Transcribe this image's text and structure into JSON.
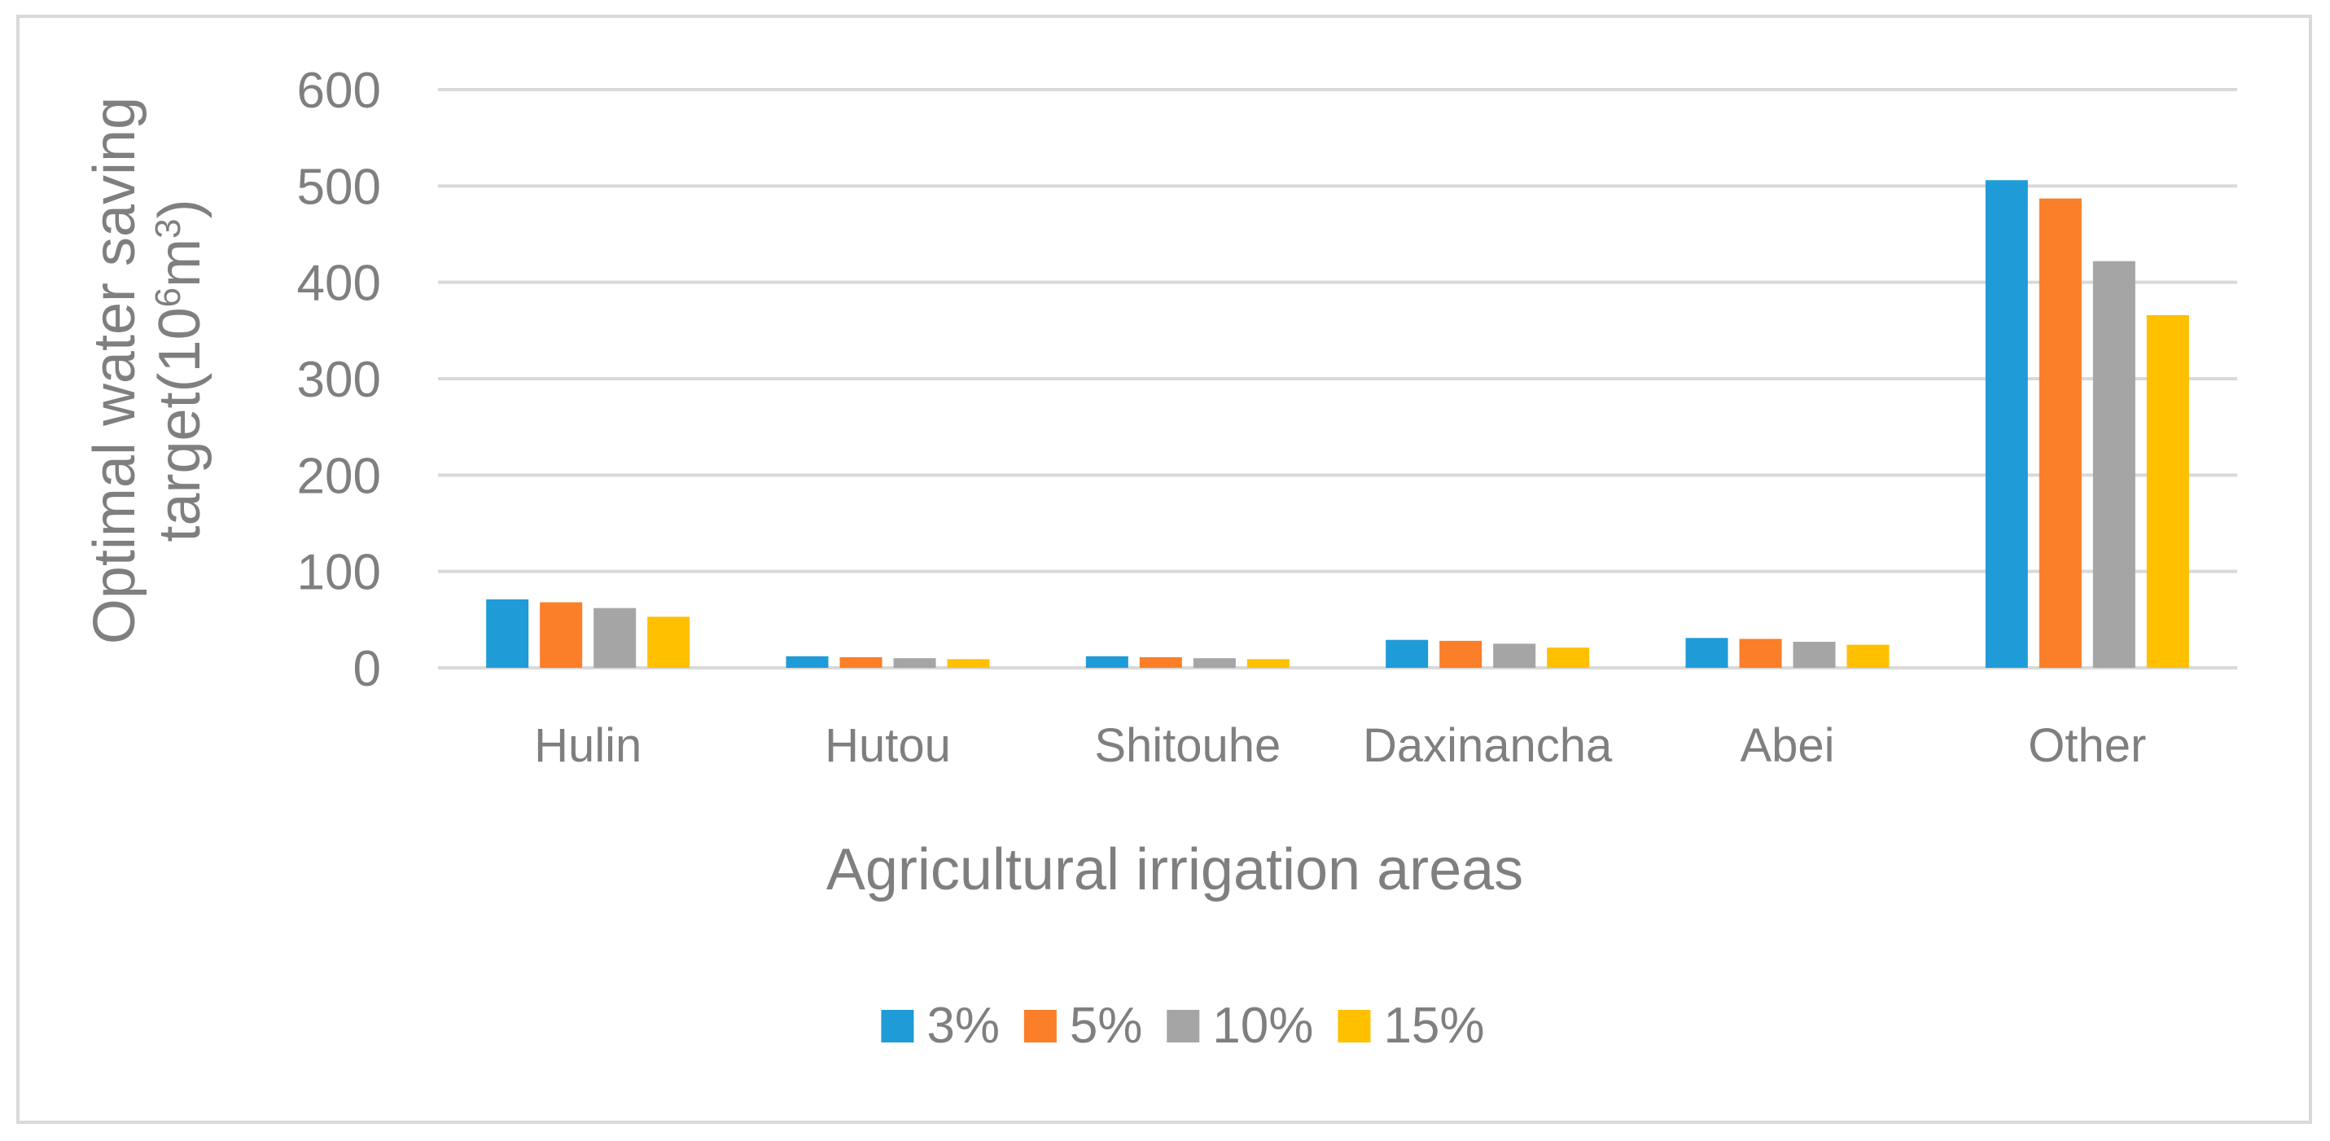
{
  "chart_data": {
    "type": "bar",
    "categories": [
      "Hulin",
      "Hutou",
      "Shitouhe",
      "Daxinancha",
      "Abei",
      "Other"
    ],
    "series": [
      {
        "name": "3%",
        "color": "#1f9bd7",
        "values": [
          71,
          12,
          12,
          29,
          31,
          506
        ]
      },
      {
        "name": "5%",
        "color": "#fb7e28",
        "values": [
          68,
          11,
          11,
          28,
          30,
          487
        ]
      },
      {
        "name": "10%",
        "color": "#a5a5a5",
        "values": [
          62,
          10,
          10,
          25,
          27,
          422
        ]
      },
      {
        "name": "15%",
        "color": "#ffc000",
        "values": [
          53,
          9,
          9,
          21,
          24,
          366
        ]
      }
    ],
    "xlabel": "Agricultural irrigation areas",
    "ylabel_line1": "Optimal water saving",
    "ylabel_line2_prefix": "target(10",
    "ylabel_sup1": "6",
    "ylabel_mid": "m",
    "ylabel_sup2": "3",
    "ylabel_suffix": ")",
    "ylim": [
      0,
      600
    ],
    "yticks": [
      0,
      100,
      200,
      300,
      400,
      500,
      600
    ],
    "grid": true,
    "legend_position": "bottom"
  }
}
